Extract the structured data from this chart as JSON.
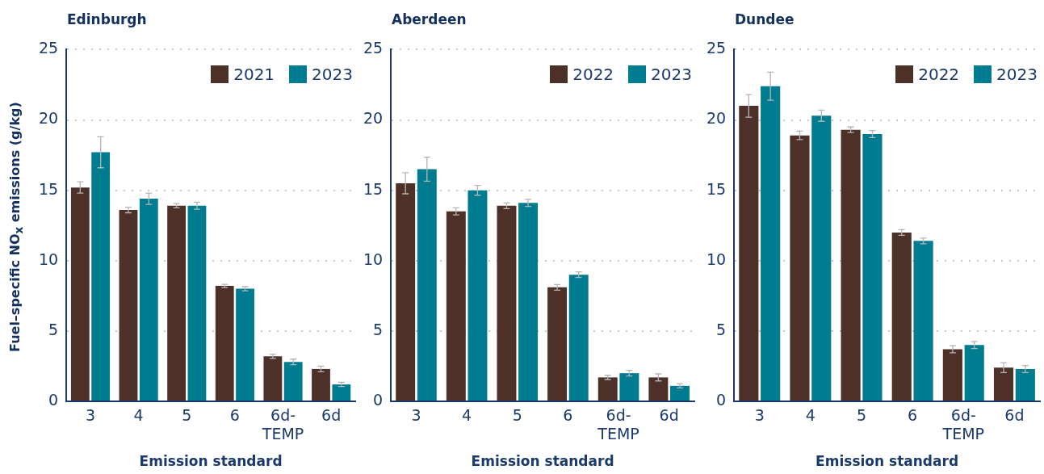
{
  "chart_data": [
    {
      "type": "bar",
      "title": "Edinburgh",
      "xlabel": "Emission standard",
      "ylabel": "Fuel–specific NO$_{x}$ emissions (g/kg)",
      "categories": [
        "3",
        "4",
        "5",
        "6",
        "6d-TEMP",
        "6d"
      ],
      "series": [
        {
          "name": "2021",
          "color": "#4d3128",
          "values": [
            15.2,
            13.6,
            13.9,
            8.2,
            3.2,
            2.3
          ],
          "errors": [
            0.4,
            0.2,
            0.15,
            0.12,
            0.15,
            0.2
          ]
        },
        {
          "name": "2023",
          "color": "#007c91",
          "values": [
            17.7,
            14.4,
            13.9,
            8.0,
            2.8,
            1.2
          ],
          "errors": [
            1.1,
            0.4,
            0.25,
            0.15,
            0.2,
            0.15
          ]
        }
      ],
      "ylim": [
        0,
        25
      ],
      "yticks": [
        0,
        5,
        10,
        15,
        20,
        25
      ],
      "grid": "y",
      "legend": "top right"
    },
    {
      "type": "bar",
      "title": "Aberdeen",
      "xlabel": "Emission standard",
      "categories": [
        "3",
        "4",
        "5",
        "6",
        "6d-TEMP",
        "6d"
      ],
      "series": [
        {
          "name": "2022",
          "color": "#4d3128",
          "values": [
            15.5,
            13.5,
            13.9,
            8.1,
            1.7,
            1.7
          ],
          "errors": [
            0.75,
            0.25,
            0.2,
            0.2,
            0.15,
            0.25
          ]
        },
        {
          "name": "2023",
          "color": "#007c91",
          "values": [
            16.5,
            15.0,
            14.1,
            9.0,
            2.0,
            1.1
          ],
          "errors": [
            0.85,
            0.35,
            0.25,
            0.2,
            0.2,
            0.15
          ]
        }
      ],
      "ylim": [
        0,
        25
      ],
      "yticks": [
        0,
        5,
        10,
        15,
        20,
        25
      ],
      "grid": "y",
      "legend": "top right"
    },
    {
      "type": "bar",
      "title": "Dundee",
      "xlabel": "Emission standard",
      "categories": [
        "3",
        "4",
        "5",
        "6",
        "6d-TEMP",
        "6d"
      ],
      "series": [
        {
          "name": "2022",
          "color": "#4d3128",
          "values": [
            21.0,
            18.9,
            19.3,
            12.0,
            3.7,
            2.4
          ],
          "errors": [
            0.8,
            0.3,
            0.2,
            0.2,
            0.25,
            0.35
          ]
        },
        {
          "name": "2023",
          "color": "#007c91",
          "values": [
            22.4,
            20.3,
            19.0,
            11.4,
            4.0,
            2.3
          ],
          "errors": [
            1.0,
            0.4,
            0.25,
            0.2,
            0.25,
            0.25
          ]
        }
      ],
      "ylim": [
        0,
        25
      ],
      "yticks": [
        0,
        5,
        10,
        15,
        20,
        25
      ],
      "grid": "y",
      "legend": "top right"
    }
  ]
}
